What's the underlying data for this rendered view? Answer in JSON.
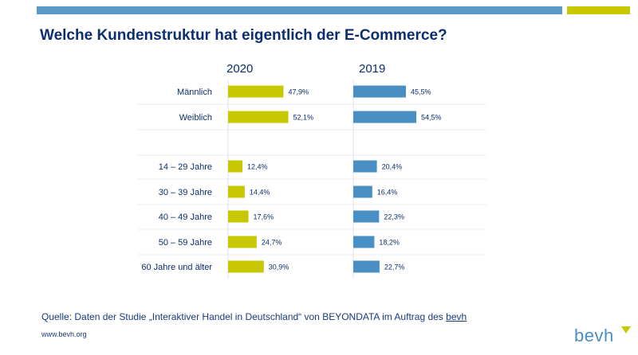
{
  "title": "Welche Kundenstruktur hat eigentlich der E-Commerce?",
  "colors": {
    "accent_blue": "#5a9ac9",
    "accent_yellow": "#c8c800",
    "navy": "#0d2e6e"
  },
  "chart_data": {
    "type": "bar",
    "orientation": "horizontal",
    "categories": [
      "Männlich",
      "Weiblich",
      "14 – 29 Jahre",
      "30 – 39 Jahre",
      "40 – 49 Jahre",
      "50 – 59 Jahre",
      "60 Jahre und älter"
    ],
    "series": [
      {
        "name": "2020",
        "color": "#c8c800",
        "values": [
          47.9,
          52.1,
          12.4,
          14.4,
          17.6,
          24.7,
          30.9
        ],
        "labels": [
          "47,9%",
          "52,1%",
          "12,4%",
          "14,4%",
          "17,6%",
          "24,7%",
          "30,9%"
        ]
      },
      {
        "name": "2019",
        "color": "#4a8fc4",
        "values": [
          45.5,
          54.5,
          20.4,
          16.4,
          22.3,
          18.2,
          22.7
        ],
        "labels": [
          "45,5%",
          "54,5%",
          "20,4%",
          "16,4%",
          "22,3%",
          "18,2%",
          "22,7%"
        ]
      }
    ],
    "grid": false
  },
  "footer": {
    "source_text": "Quelle: Daten der Studie „Interaktiver Handel in Deutschland“ von BEYONDATA im Auftrag des ",
    "source_link": "bevh",
    "website": "www.bevh.org"
  },
  "logo": {
    "text": "bevh",
    "icon": "bevh-logo-mark"
  }
}
